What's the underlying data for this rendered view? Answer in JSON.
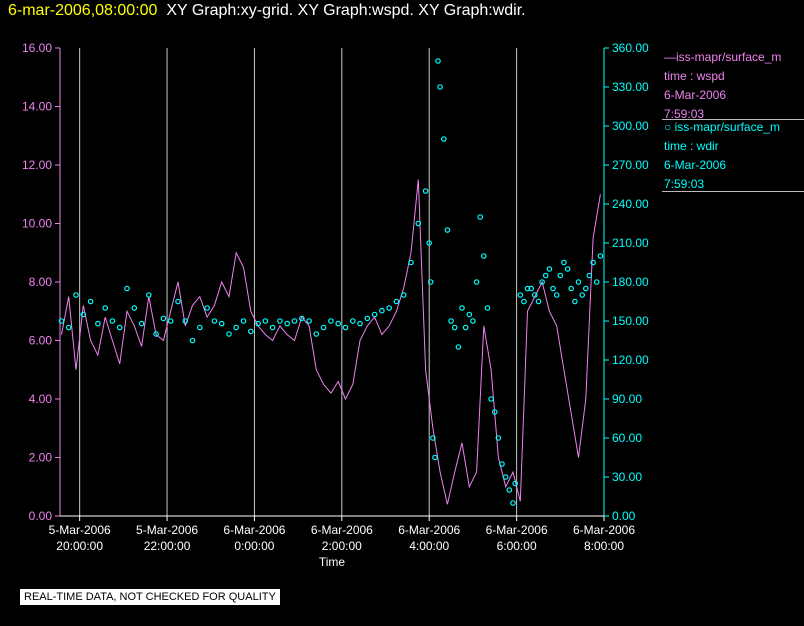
{
  "header": {
    "timestamp": "6-mar-2006,08:00:00",
    "titles": "XY Graph:xy-grid.  XY Graph:wspd.  XY Graph:wdir."
  },
  "legend": {
    "wspd": {
      "name": "iss-mapr/surface_m",
      "field": "time : wspd",
      "date": "6-Mar-2006",
      "time": "7:59:03"
    },
    "wdir": {
      "name": "iss-mapr/surface_m",
      "field": "time : wdir",
      "date": "6-Mar-2006",
      "time": "7:59:03"
    }
  },
  "notice": "REAL-TIME DATA, NOT CHECKED FOR QUALITY",
  "colors": {
    "wspd": "#ee82ee",
    "wdir": "#00ffff",
    "grid": "#c8c8c8",
    "timestamp": "#ffff00"
  },
  "chart_data": {
    "type": "line",
    "xlabel": "Time",
    "xlim": [
      "2006-03-05 19:33",
      "2006-03-06 08:00"
    ],
    "x_ticks": [
      [
        "5-Mar-2006",
        "20:00:00"
      ],
      [
        "5-Mar-2006",
        "22:00:00"
      ],
      [
        "6-Mar-2006",
        "0:00:00"
      ],
      [
        "6-Mar-2006",
        "2:00:00"
      ],
      [
        "6-Mar-2006",
        "4:00:00"
      ],
      [
        "6-Mar-2006",
        "6:00:00"
      ],
      [
        "6-Mar-2006",
        "8:00:00"
      ]
    ],
    "y_left": {
      "ylim": [
        0,
        16
      ],
      "ticks": [
        "0.00",
        "2.00",
        "4.00",
        "6.00",
        "8.00",
        "10.00",
        "12.00",
        "14.00",
        "16.00"
      ]
    },
    "y_right": {
      "ylim": [
        0,
        360
      ],
      "ticks": [
        "0.00",
        "30.00",
        "60.00",
        "90.00",
        "120.00",
        "150.00",
        "180.00",
        "210.00",
        "240.00",
        "270.00",
        "300.00",
        "330.00",
        "360.00"
      ]
    },
    "series": [
      {
        "name": "wspd",
        "axis": "left",
        "style": "line",
        "t": [
          "19:35",
          "19:45",
          "19:55",
          "20:05",
          "20:15",
          "20:25",
          "20:35",
          "20:45",
          "20:55",
          "21:05",
          "21:15",
          "21:25",
          "21:35",
          "21:45",
          "21:55",
          "22:05",
          "22:15",
          "22:25",
          "22:35",
          "22:45",
          "22:55",
          "23:05",
          "23:15",
          "23:25",
          "23:35",
          "23:45",
          "23:55",
          "00:05",
          "00:15",
          "00:25",
          "00:35",
          "00:45",
          "00:55",
          "01:05",
          "01:15",
          "01:25",
          "01:35",
          "01:45",
          "01:55",
          "02:05",
          "02:15",
          "02:25",
          "02:35",
          "02:45",
          "02:55",
          "03:05",
          "03:15",
          "03:25",
          "03:35",
          "03:45",
          "03:55",
          "04:05",
          "04:15",
          "04:25",
          "04:35",
          "04:45",
          "04:55",
          "05:05",
          "05:15",
          "05:25",
          "05:35",
          "05:45",
          "05:55",
          "06:05",
          "06:15",
          "06:25",
          "06:35",
          "06:45",
          "06:55",
          "07:05",
          "07:15",
          "07:25",
          "07:35",
          "07:45",
          "07:55"
        ],
        "values": [
          6.2,
          7.5,
          5.0,
          7.2,
          6.0,
          5.5,
          6.8,
          6.0,
          5.2,
          7.0,
          6.5,
          5.8,
          7.5,
          6.2,
          6.0,
          7.0,
          8.0,
          6.5,
          7.2,
          7.5,
          6.8,
          7.2,
          8.0,
          7.5,
          9.0,
          8.5,
          7.0,
          6.5,
          6.2,
          6.0,
          6.5,
          6.2,
          6.0,
          6.8,
          6.5,
          5.0,
          4.5,
          4.2,
          4.6,
          4.0,
          4.5,
          6.0,
          6.5,
          6.8,
          6.2,
          6.5,
          7.0,
          7.8,
          9.0,
          11.5,
          5.0,
          3.0,
          1.5,
          0.4,
          1.5,
          2.5,
          1.0,
          1.5,
          6.5,
          5.0,
          2.0,
          1.0,
          1.5,
          0.5,
          7.0,
          7.5,
          8.0,
          7.0,
          6.5,
          5.0,
          3.5,
          2.0,
          4.0,
          9.5,
          11.0
        ]
      },
      {
        "name": "wdir",
        "axis": "right",
        "style": "points",
        "t": [
          "19:35",
          "19:45",
          "19:55",
          "20:05",
          "20:15",
          "20:25",
          "20:35",
          "20:45",
          "20:55",
          "21:05",
          "21:15",
          "21:25",
          "21:35",
          "21:45",
          "21:55",
          "22:05",
          "22:15",
          "22:25",
          "22:35",
          "22:45",
          "22:55",
          "23:05",
          "23:15",
          "23:25",
          "23:35",
          "23:45",
          "23:55",
          "00:05",
          "00:15",
          "00:25",
          "00:35",
          "00:45",
          "00:55",
          "01:05",
          "01:15",
          "01:25",
          "01:35",
          "01:45",
          "01:55",
          "02:05",
          "02:15",
          "02:25",
          "02:35",
          "02:45",
          "02:55",
          "03:05",
          "03:15",
          "03:25",
          "03:35",
          "03:45",
          "03:55",
          "04:00",
          "04:02",
          "04:05",
          "04:08",
          "04:12",
          "04:15",
          "04:20",
          "04:25",
          "04:30",
          "04:35",
          "04:40",
          "04:45",
          "04:50",
          "04:55",
          "05:00",
          "05:05",
          "05:10",
          "05:15",
          "05:20",
          "05:25",
          "05:30",
          "05:35",
          "05:40",
          "05:45",
          "05:50",
          "05:55",
          "05:58",
          "06:05",
          "06:10",
          "06:15",
          "06:20",
          "06:25",
          "06:30",
          "06:35",
          "06:40",
          "06:45",
          "06:50",
          "06:55",
          "07:00",
          "07:05",
          "07:10",
          "07:15",
          "07:20",
          "07:25",
          "07:30",
          "07:35",
          "07:40",
          "07:45",
          "07:50",
          "07:55"
        ],
        "values": [
          150,
          145,
          170,
          155,
          165,
          148,
          160,
          150,
          145,
          175,
          160,
          148,
          170,
          140,
          152,
          150,
          165,
          150,
          135,
          145,
          160,
          150,
          148,
          140,
          145,
          150,
          142,
          148,
          150,
          145,
          150,
          148,
          150,
          152,
          150,
          140,
          145,
          150,
          148,
          145,
          150,
          148,
          152,
          155,
          158,
          160,
          165,
          170,
          195,
          225,
          250,
          210,
          180,
          60,
          45,
          350,
          330,
          290,
          220,
          150,
          145,
          130,
          160,
          145,
          155,
          150,
          180,
          230,
          200,
          160,
          90,
          80,
          60,
          40,
          30,
          20,
          10,
          25,
          170,
          165,
          175,
          175,
          170,
          165,
          180,
          185,
          190,
          175,
          170,
          185,
          195,
          190,
          175,
          165,
          180,
          170,
          175,
          185,
          195,
          180,
          200
        ]
      }
    ]
  }
}
